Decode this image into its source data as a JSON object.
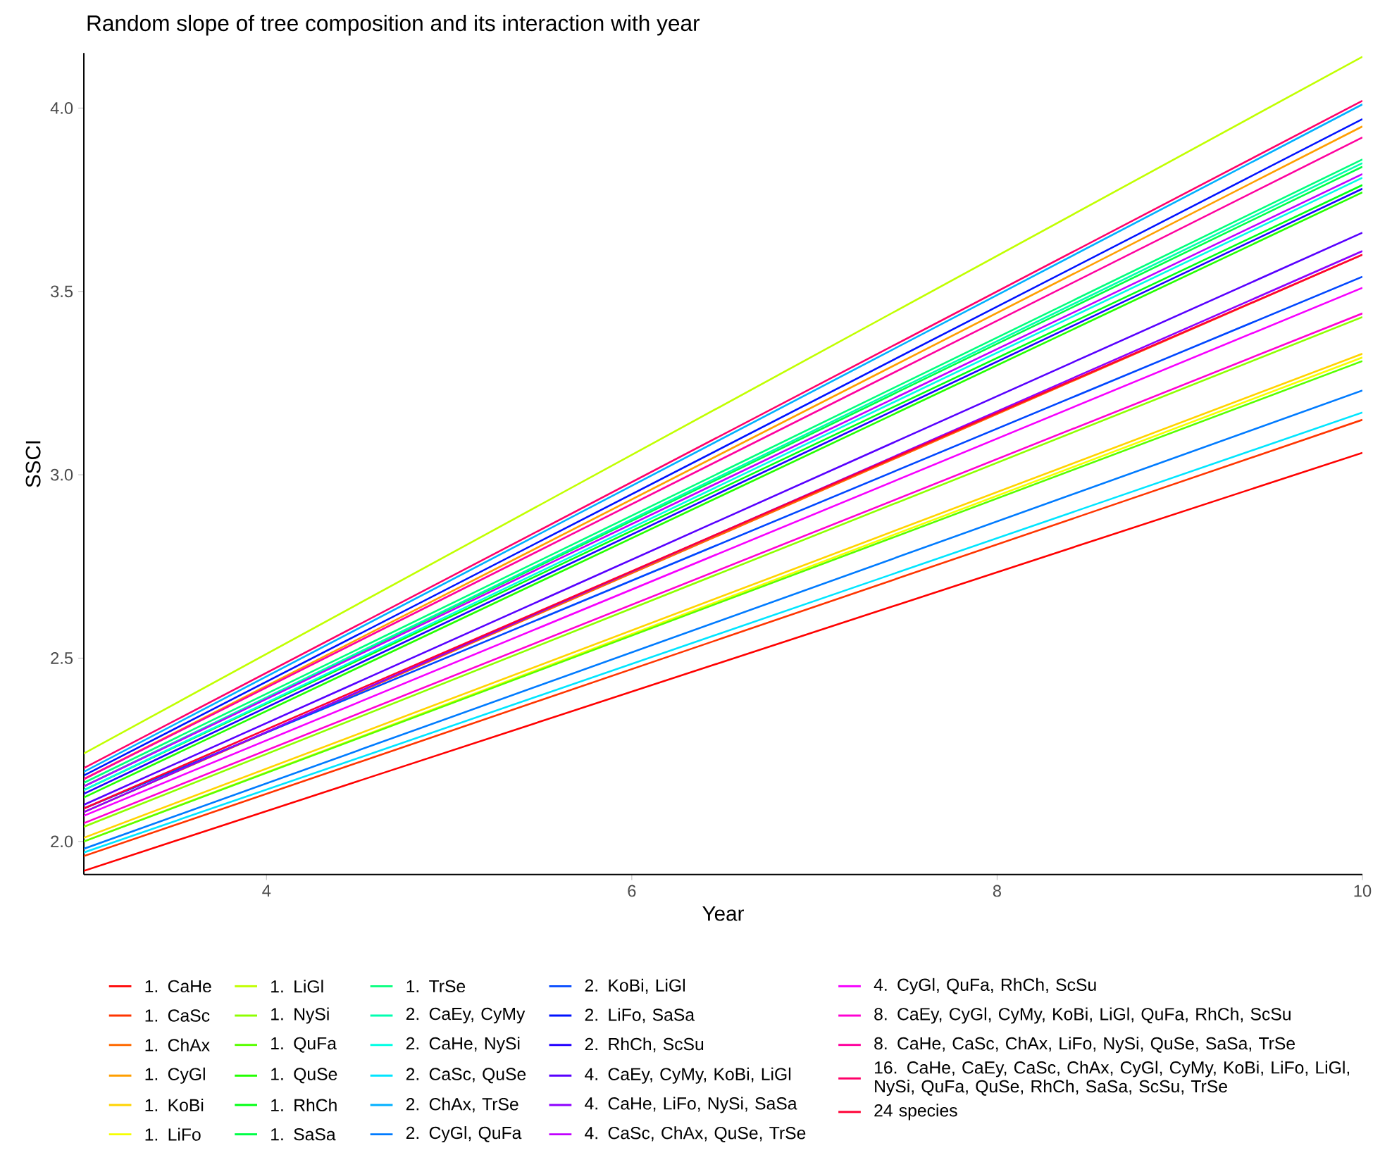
{
  "chart_data": {
    "type": "line",
    "title": "Random slope of tree composition and its interaction with year",
    "xlabel": "Year",
    "ylabel": "SSCI",
    "x": [
      3,
      10
    ],
    "xlim": [
      3,
      10
    ],
    "ylim": [
      1.91,
      4.15
    ],
    "xticks": [
      4,
      6,
      8,
      10
    ],
    "yticks": [
      {
        "value": 2,
        "label": "2.0"
      },
      {
        "value": 2.5,
        "label": "2.5"
      },
      {
        "value": 3,
        "label": "3.0"
      },
      {
        "value": 3.5,
        "label": "3.5"
      },
      {
        "value": 4,
        "label": "4.0"
      }
    ],
    "grid": false,
    "legend": "bottom",
    "series": [
      {
        "name": "1. CaHe",
        "color": "#ff0000",
        "values": [
          1.92,
          3.06
        ]
      },
      {
        "name": "1. CaSc",
        "color": "#ff3500",
        "values": [
          1.96,
          3.15
        ]
      },
      {
        "name": "1. ChAx",
        "color": "#ff6900",
        "values": [
          2.08,
          3.6
        ]
      },
      {
        "name": "1. CyGl",
        "color": "#ff9e00",
        "values": [
          2.17,
          3.95
        ]
      },
      {
        "name": "1. KoBi",
        "color": "#ffd300",
        "values": [
          2.01,
          3.33
        ]
      },
      {
        "name": "1. LiFo",
        "color": "#f6ff00",
        "values": [
          2.0,
          3.32
        ]
      },
      {
        "name": "1. LiGl",
        "color": "#c1ff00",
        "values": [
          2.24,
          4.14
        ]
      },
      {
        "name": "1. NySi",
        "color": "#8dff00",
        "values": [
          2.04,
          3.43
        ]
      },
      {
        "name": "1. QuFa",
        "color": "#58ff00",
        "values": [
          2.0,
          3.31
        ]
      },
      {
        "name": "1. QuSe",
        "color": "#23ff00",
        "values": [
          2.12,
          3.77
        ]
      },
      {
        "name": "1. RhCh",
        "color": "#00ff12",
        "values": [
          2.14,
          3.79
        ]
      },
      {
        "name": "1. SaSa",
        "color": "#00ff46",
        "values": [
          2.15,
          3.84
        ]
      },
      {
        "name": "1. TrSe",
        "color": "#00ff7b",
        "values": [
          2.16,
          3.86
        ]
      },
      {
        "name": "2. CaEy, CyMy",
        "color": "#00ffb0",
        "values": [
          2.15,
          3.85
        ]
      },
      {
        "name": "2. CaHe, NySi",
        "color": "#00ffe5",
        "values": [
          2.14,
          3.81
        ]
      },
      {
        "name": "2. CaSc, QuSe",
        "color": "#00e5ff",
        "values": [
          1.97,
          3.17
        ]
      },
      {
        "name": "2. ChAx, TrSe",
        "color": "#00b0ff",
        "values": [
          2.19,
          4.01
        ]
      },
      {
        "name": "2. CyGl, QuFa",
        "color": "#007bff",
        "values": [
          1.98,
          3.23
        ]
      },
      {
        "name": "2. KoBi, LiGl",
        "color": "#0047ff",
        "values": [
          2.09,
          3.54
        ]
      },
      {
        "name": "2. LiFo, SaSa",
        "color": "#0012ff",
        "values": [
          2.18,
          3.97
        ]
      },
      {
        "name": "2. RhCh, ScSu",
        "color": "#2300ff",
        "values": [
          2.13,
          3.78
        ]
      },
      {
        "name": "4. CaEy, CyMy, KoBi, LiGl",
        "color": "#5800ff",
        "values": [
          2.1,
          3.66
        ]
      },
      {
        "name": "4. CaHe, LiFo, NySi, SaSa",
        "color": "#8d00ff",
        "values": [
          2.08,
          3.61
        ]
      },
      {
        "name": "4. CaSc, ChAx, QuSe, TrSe",
        "color": "#c100ff",
        "values": [
          2.15,
          3.82
        ]
      },
      {
        "name": "4. CyGl, QuFa, RhCh, ScSu",
        "color": "#f600ff",
        "values": [
          2.07,
          3.51
        ]
      },
      {
        "name": "8. CaEy, CyGl, CyMy, KoBi, LiGl, QuFa, RhCh, ScSu",
        "color": "#ff00d3",
        "values": [
          2.05,
          3.44
        ]
      },
      {
        "name": "8. CaHe, CaSc, ChAx, LiFo, NySi, QuSe, SaSa, TrSe",
        "color": "#ff009e",
        "values": [
          2.17,
          3.92
        ]
      },
      {
        "name": "16. CaHe, CaEy, CaSc, ChAx, CyGl, CyMy, KoBi, LiFo, LiGl, NySi, QuFa, QuSe, RhCh, SaSa, ScSu, TrSe",
        "color": "#ff0069",
        "values": [
          2.2,
          4.02
        ]
      },
      {
        "name": "24 species",
        "color": "#ff0035",
        "values": [
          2.09,
          3.6
        ]
      }
    ]
  }
}
